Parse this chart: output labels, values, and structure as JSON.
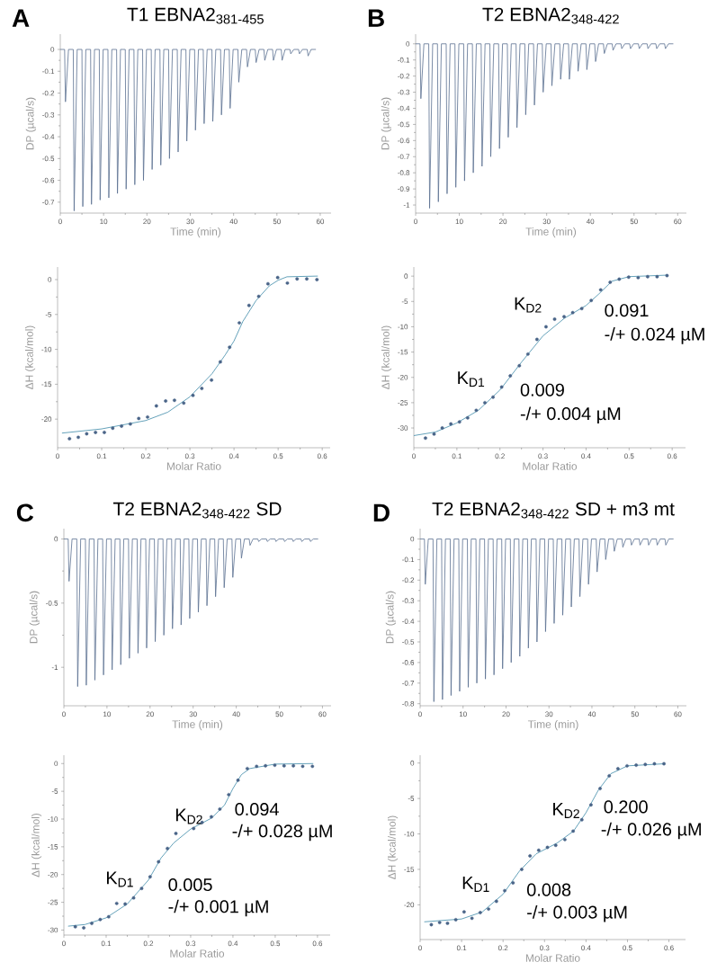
{
  "chart_data": [
    {
      "type": "line",
      "title": "T1 EBNA2$_{381-455}$",
      "xlabel": "Time (min)",
      "ylabel": "DP (µcal/s)",
      "annotations": [
        "A"
      ],
      "x": [
        0,
        1,
        1.2,
        1.9,
        3,
        3.2,
        3.9,
        5,
        5.2,
        5.9,
        7,
        7.2,
        7.9,
        9,
        9.2,
        9.9,
        11,
        11.2,
        11.9,
        13,
        13.2,
        13.9,
        15,
        15.2,
        15.9,
        17,
        17.2,
        17.9,
        19,
        19.2,
        19.9,
        21,
        21.2,
        21.9,
        23,
        23.2,
        23.9,
        25,
        25.2,
        25.9,
        27,
        27.2,
        27.9,
        29,
        29.2,
        29.9,
        31,
        31.2,
        31.9,
        33,
        33.2,
        33.9,
        35,
        35.2,
        35.9,
        37,
        37.2,
        37.9,
        39,
        39.2,
        39.9,
        41,
        41.2,
        41.9,
        43,
        43.2,
        43.9,
        45,
        45.2,
        45.9,
        47,
        47.2,
        47.9,
        49,
        49.2,
        49.9,
        51,
        51.2,
        51.9,
        53,
        53.2,
        53.9,
        55,
        55.2,
        55.9,
        57,
        57.2,
        57.9,
        59
      ],
      "series": [
        {
          "color": "#5b7091",
          "values": [
            0,
            0,
            -0.24,
            0,
            0,
            -0.74,
            0,
            0,
            -0.72,
            0,
            0,
            -0.71,
            0,
            0,
            -0.69,
            0,
            0,
            -0.68,
            0,
            0,
            -0.66,
            0,
            0,
            -0.64,
            0,
            0,
            -0.62,
            0,
            0,
            -0.6,
            0,
            0,
            -0.55,
            0,
            0,
            -0.53,
            0,
            0,
            -0.5,
            0,
            0,
            -0.47,
            0,
            0,
            -0.42,
            0,
            0,
            -0.37,
            0,
            0,
            -0.34,
            0,
            0,
            -0.33,
            0,
            0,
            -0.3,
            0,
            0,
            -0.27,
            0,
            0,
            -0.15,
            0,
            0,
            -0.08,
            0,
            0,
            -0.06,
            0,
            0,
            -0.05,
            0,
            0,
            -0.05,
            0,
            0,
            -0.05,
            0,
            0,
            -0.02,
            0,
            0,
            -0.02,
            0,
            0,
            -0.03,
            0,
            0
          ]
        }
      ],
      "xlim": [
        0,
        62.5
      ],
      "xticks": [
        0,
        10,
        20,
        30,
        40,
        50,
        60
      ],
      "ylim": [
        -0.75,
        0.07
      ],
      "yticks": [
        0,
        -0.1,
        -0.2,
        -0.3,
        -0.4,
        -0.5,
        -0.6,
        -0.7
      ]
    },
    {
      "type": "scatter",
      "xlabel": "Molar Ratio",
      "ylabel": "ΔH (kcal/mol)",
      "series": [
        {
          "type": "scatter",
          "color": "#4a6488",
          "marker": "circle",
          "x": [
            0.027,
            0.047,
            0.066,
            0.086,
            0.106,
            0.125,
            0.145,
            0.165,
            0.184,
            0.204,
            0.224,
            0.245,
            0.265,
            0.286,
            0.307,
            0.327,
            0.349,
            0.369,
            0.39,
            0.412,
            0.434,
            0.456,
            0.477,
            0.499,
            0.521,
            0.543,
            0.565,
            0.588
          ],
          "values": [
            -22.8,
            -22.6,
            -22.1,
            -21.9,
            -21.9,
            -21.3,
            -21,
            -20.7,
            -19.9,
            -19.7,
            -18.1,
            -17.4,
            -17.3,
            -17.7,
            -16.6,
            -15.6,
            -14.4,
            -11.8,
            -9.7,
            -6.2,
            -3.7,
            -2.4,
            -0.6,
            0.3,
            -0.5,
            0.1,
            0.1,
            0
          ]
        },
        {
          "type": "line",
          "color": "#3e8aa8",
          "x": [
            0.01,
            0.1,
            0.2,
            0.25,
            0.3,
            0.35,
            0.38,
            0.4,
            0.42,
            0.45,
            0.48,
            0.5,
            0.52,
            0.59
          ],
          "values": [
            -22,
            -21.4,
            -20.2,
            -19,
            -16.8,
            -13.5,
            -10.8,
            -8.8,
            -6,
            -3,
            -0.9,
            -0.1,
            0.4,
            0.5
          ]
        }
      ],
      "xlim": [
        0,
        0.618
      ],
      "xticks": [
        0,
        0.1,
        0.2,
        0.3,
        0.4,
        0.5,
        0.6
      ],
      "ylim": [
        -24.1,
        1.8
      ],
      "yticks": [
        0,
        -5,
        -10,
        -15,
        -20
      ]
    },
    {
      "type": "line",
      "title": "T2 EBNA2$_{348-422}$",
      "xlabel": "Time (min)",
      "ylabel": "DP (µcal/s)",
      "annotations": [
        "B"
      ],
      "x": [
        0,
        1,
        1.2,
        1.9,
        3,
        3.2,
        3.9,
        5,
        5.2,
        5.9,
        7,
        7.2,
        7.9,
        9,
        9.2,
        9.9,
        11,
        11.2,
        11.9,
        13,
        13.2,
        13.9,
        15,
        15.2,
        15.9,
        17,
        17.2,
        17.9,
        19,
        19.2,
        19.9,
        21,
        21.2,
        21.9,
        23,
        23.2,
        23.9,
        25,
        25.2,
        25.9,
        27,
        27.2,
        27.9,
        29,
        29.2,
        29.9,
        31,
        31.2,
        31.9,
        33,
        33.2,
        33.9,
        35,
        35.2,
        35.9,
        37,
        37.2,
        37.9,
        39,
        39.2,
        39.9,
        41,
        41.2,
        41.9,
        43,
        43.2,
        43.9,
        45,
        45.2,
        45.9,
        47,
        47.2,
        47.9,
        49,
        49.2,
        49.9,
        51,
        51.2,
        51.9,
        53,
        53.2,
        53.9,
        55,
        55.2,
        55.9,
        57,
        57.2,
        57.9,
        59
      ],
      "series": [
        {
          "color": "#5b7091",
          "values": [
            0,
            0,
            -0.34,
            0,
            0,
            -1.02,
            0,
            0,
            -0.98,
            0,
            0,
            -0.93,
            0,
            0,
            -0.89,
            0,
            0,
            -0.85,
            0,
            0,
            -0.8,
            0,
            0,
            -0.76,
            0,
            0,
            -0.7,
            0,
            0,
            -0.65,
            0,
            0,
            -0.58,
            0,
            0,
            -0.52,
            0,
            0,
            -0.44,
            0,
            0,
            -0.38,
            0,
            0,
            -0.3,
            0,
            0,
            -0.26,
            0,
            0,
            -0.22,
            0,
            0,
            -0.22,
            0,
            0,
            -0.17,
            0,
            0,
            -0.16,
            0,
            0,
            -0.11,
            0,
            0,
            -0.06,
            0,
            0,
            -0.04,
            0,
            0,
            -0.03,
            0,
            0,
            -0.03,
            0,
            0,
            -0.03,
            0,
            0,
            -0.03,
            0,
            0,
            -0.03,
            0,
            0,
            -0.03,
            0,
            0
          ]
        }
      ],
      "xlim": [
        0,
        62
      ],
      "xticks": [
        0,
        10,
        20,
        30,
        40,
        50,
        60
      ],
      "ylim": [
        -1.05,
        0.06
      ],
      "yticks": [
        0,
        -0.1,
        -0.2,
        -0.3,
        -0.4,
        -0.5,
        -0.6,
        -0.7,
        -0.8,
        -0.9,
        -1
      ]
    },
    {
      "type": "scatter",
      "xlabel": "Molar Ratio",
      "ylabel": "ΔH (kcal/mol)",
      "annotations": [
        "K$_{D2}$",
        "0.091",
        "-/+ 0.024 µM",
        "K$_{D1}$",
        "0.009",
        "-/+ 0.004 µM"
      ],
      "series": [
        {
          "type": "scatter",
          "color": "#4a6488",
          "marker": "circle",
          "x": [
            0.027,
            0.047,
            0.066,
            0.086,
            0.106,
            0.125,
            0.145,
            0.165,
            0.184,
            0.204,
            0.224,
            0.245,
            0.265,
            0.286,
            0.307,
            0.327,
            0.349,
            0.369,
            0.39,
            0.412,
            0.434,
            0.456,
            0.477,
            0.499,
            0.521,
            0.543,
            0.565,
            0.588
          ],
          "values": [
            -32,
            -31.2,
            -30,
            -29.2,
            -28.8,
            -28,
            -26.5,
            -25,
            -23.9,
            -21.9,
            -19.7,
            -17.7,
            -15.4,
            -12.5,
            -10,
            -8.5,
            -8,
            -7.2,
            -6.4,
            -4.8,
            -2.7,
            -1.2,
            -0.6,
            -0.2,
            -0.3,
            -0.1,
            -0.1,
            0.1
          ]
        },
        {
          "type": "line",
          "color": "#3e8aa8",
          "x": [
            0,
            0.05,
            0.1,
            0.15,
            0.2,
            0.25,
            0.3,
            0.35,
            0.4,
            0.43,
            0.46,
            0.5,
            0.59
          ],
          "values": [
            -31.5,
            -30.8,
            -29,
            -26.5,
            -22.5,
            -17,
            -11.8,
            -8.3,
            -5.8,
            -3.5,
            -1,
            -0.1,
            0.2
          ]
        }
      ],
      "xlim": [
        0,
        0.631
      ],
      "xticks": [
        0,
        0.1,
        0.2,
        0.3,
        0.4,
        0.5,
        0.6
      ],
      "ylim": [
        -33.9,
        1.8
      ],
      "yticks": [
        0,
        -5,
        -10,
        -15,
        -20,
        -25,
        -30
      ]
    },
    {
      "type": "line",
      "title": "T2 EBNA2$_{348-422}$ SD",
      "xlabel": "Time (min)",
      "ylabel": "DP (µcal/s)",
      "annotations": [
        "C"
      ],
      "x": [
        0,
        1,
        1.2,
        1.9,
        3,
        3.2,
        3.9,
        5,
        5.2,
        5.9,
        7,
        7.2,
        7.9,
        9,
        9.2,
        9.9,
        11,
        11.2,
        11.9,
        13,
        13.2,
        13.9,
        15,
        15.2,
        15.9,
        17,
        17.2,
        17.9,
        19,
        19.2,
        19.9,
        21,
        21.2,
        21.9,
        23,
        23.2,
        23.9,
        25,
        25.2,
        25.9,
        27,
        27.2,
        27.9,
        29,
        29.2,
        29.9,
        31,
        31.2,
        31.9,
        33,
        33.2,
        33.9,
        35,
        35.2,
        35.9,
        37,
        37.2,
        37.9,
        39,
        39.2,
        39.9,
        41,
        41.2,
        41.9,
        43,
        43.2,
        43.9,
        45,
        45.2,
        45.9,
        47,
        47.2,
        47.9,
        49,
        49.2,
        49.9,
        51,
        51.2,
        51.9,
        53,
        53.2,
        53.9,
        55,
        55.2,
        55.9,
        57,
        57.2,
        57.9,
        59
      ],
      "series": [
        {
          "color": "#5b7091",
          "values": [
            0,
            0,
            -0.33,
            0,
            0,
            -1.15,
            0,
            0,
            -1.14,
            0,
            0,
            -1.1,
            0,
            0,
            -1.06,
            0,
            0,
            -1.02,
            0,
            0,
            -0.98,
            0,
            0,
            -0.93,
            0,
            0,
            -0.89,
            0,
            0,
            -0.85,
            0,
            0,
            -0.8,
            0,
            0,
            -0.75,
            0,
            0,
            -0.7,
            0,
            0,
            -0.67,
            0,
            0,
            -0.62,
            0,
            0,
            -0.57,
            0,
            0,
            -0.52,
            0,
            0,
            -0.45,
            0,
            0,
            -0.38,
            0,
            0,
            -0.3,
            0,
            0,
            -0.15,
            0,
            0,
            -0.05,
            0,
            0,
            -0.02,
            0,
            0,
            -0.02,
            0,
            0,
            -0.02,
            0,
            0,
            -0.02,
            0,
            0,
            -0.02,
            0,
            0,
            -0.02,
            0,
            0,
            -0.02,
            0,
            0
          ]
        }
      ],
      "xlim": [
        0,
        62
      ],
      "xticks": [
        0,
        10,
        20,
        30,
        40,
        50,
        60
      ],
      "ylim": [
        -1.3,
        0.08
      ],
      "yticks": [
        0,
        -0.5,
        -1
      ]
    },
    {
      "type": "scatter",
      "xlabel": "Molar Ratio",
      "ylabel": "ΔH (kcal/mol)",
      "annotations": [
        "K$_{D2}$",
        "0.094",
        "-/+ 0.028 µM",
        "K$_{D1}$",
        "0.005",
        "-/+ 0.001 µM"
      ],
      "series": [
        {
          "type": "scatter",
          "color": "#4a6488",
          "marker": "circle",
          "x": [
            0.027,
            0.047,
            0.066,
            0.086,
            0.106,
            0.125,
            0.145,
            0.165,
            0.184,
            0.204,
            0.224,
            0.245,
            0.265,
            0.307,
            0.327,
            0.349,
            0.369,
            0.39,
            0.412,
            0.434,
            0.456,
            0.477,
            0.499,
            0.521,
            0.543,
            0.565,
            0.588
          ],
          "values": [
            -29.4,
            -29.6,
            -28.8,
            -28.1,
            -27.6,
            -25.2,
            -25.3,
            -24.2,
            -22.5,
            -20.4,
            -17.7,
            -15.3,
            -12.6,
            -11.7,
            -10.6,
            -9.6,
            -8.2,
            -5.6,
            -3,
            -0.9,
            -0.5,
            -0.4,
            -0.3,
            -0.4,
            -0.4,
            -0.5,
            -0.5
          ]
        },
        {
          "type": "line",
          "color": "#3e8aa8",
          "x": [
            0.01,
            0.05,
            0.1,
            0.15,
            0.2,
            0.23,
            0.26,
            0.3,
            0.35,
            0.38,
            0.4,
            0.42,
            0.44,
            0.5,
            0.59
          ],
          "values": [
            -29.3,
            -29,
            -27.8,
            -25.3,
            -21,
            -17,
            -14.3,
            -11.8,
            -9.8,
            -7.5,
            -4.5,
            -2,
            -0.9,
            -0.1,
            0
          ]
        }
      ],
      "xlim": [
        0,
        0.63
      ],
      "xticks": [
        0,
        0.1,
        0.2,
        0.3,
        0.4,
        0.5,
        0.6
      ],
      "ylim": [
        -30.9,
        1.5
      ],
      "yticks": [
        0,
        -5,
        -10,
        -15,
        -20,
        -25,
        -30
      ]
    },
    {
      "type": "line",
      "title": "T2 EBNA2$_{348-422}$ SD + m3 mt",
      "xlabel": "Time (min)",
      "ylabel": "DP (µcal/s)",
      "annotations": [
        "D"
      ],
      "x": [
        0,
        1,
        1.2,
        1.9,
        3,
        3.2,
        3.9,
        5,
        5.2,
        5.9,
        7,
        7.2,
        7.9,
        9,
        9.2,
        9.9,
        11,
        11.2,
        11.9,
        13,
        13.2,
        13.9,
        15,
        15.2,
        15.9,
        17,
        17.2,
        17.9,
        19,
        19.2,
        19.9,
        21,
        21.2,
        21.9,
        23,
        23.2,
        23.9,
        25,
        25.2,
        25.9,
        27,
        27.2,
        27.9,
        29,
        29.2,
        29.9,
        31,
        31.2,
        31.9,
        33,
        33.2,
        33.9,
        35,
        35.2,
        35.9,
        37,
        37.2,
        37.9,
        39,
        39.2,
        39.9,
        41,
        41.2,
        41.9,
        43,
        43.2,
        43.9,
        45,
        45.2,
        45.9,
        47,
        47.2,
        47.9,
        49,
        49.2,
        49.9,
        51,
        51.2,
        51.9,
        53,
        53.2,
        53.9,
        55,
        55.2,
        55.9,
        57,
        57.2,
        57.9,
        59
      ],
      "series": [
        {
          "color": "#5b7091",
          "values": [
            0,
            0,
            -0.22,
            0,
            0,
            -0.79,
            0,
            0,
            -0.78,
            0,
            0,
            -0.76,
            0,
            0,
            -0.74,
            0,
            0,
            -0.72,
            0,
            0,
            -0.7,
            0,
            0,
            -0.68,
            0,
            0,
            -0.66,
            0,
            0,
            -0.63,
            0,
            0,
            -0.6,
            0,
            0,
            -0.57,
            0,
            0,
            -0.53,
            0,
            0,
            -0.5,
            0,
            0,
            -0.45,
            0,
            0,
            -0.41,
            0,
            0,
            -0.37,
            0,
            0,
            -0.33,
            0,
            0,
            -0.28,
            0,
            0,
            -0.22,
            0,
            0,
            -0.16,
            0,
            0,
            -0.1,
            0,
            0,
            -0.06,
            0,
            0,
            -0.04,
            0,
            0,
            -0.03,
            0,
            0,
            -0.03,
            0,
            0,
            -0.03,
            0,
            0,
            -0.03,
            0,
            0,
            -0.03,
            0,
            0
          ]
        }
      ],
      "xlim": [
        0,
        62
      ],
      "xticks": [
        0,
        10,
        20,
        30,
        40,
        50,
        60
      ],
      "ylim": [
        -0.81,
        0.05
      ],
      "yticks": [
        0,
        -0.1,
        -0.2,
        -0.3,
        -0.4,
        -0.5,
        -0.6,
        -0.7,
        -0.8
      ]
    },
    {
      "type": "scatter",
      "xlabel": "Molar Ratio",
      "ylabel": "ΔH (kcal/mol)",
      "annotations": [
        "K$_{D2}$",
        "0.200",
        "-/+ 0.026 µM",
        "K$_{D1}$",
        "0.008",
        "-/+ 0.003 µM"
      ],
      "series": [
        {
          "type": "scatter",
          "color": "#4a6488",
          "marker": "circle",
          "x": [
            0.027,
            0.047,
            0.066,
            0.086,
            0.106,
            0.125,
            0.145,
            0.165,
            0.184,
            0.204,
            0.224,
            0.245,
            0.265,
            0.286,
            0.307,
            0.327,
            0.349,
            0.369,
            0.39,
            0.412,
            0.434,
            0.456,
            0.477,
            0.499,
            0.521,
            0.543,
            0.565,
            0.588
          ],
          "values": [
            -22.8,
            -22.5,
            -22.6,
            -22.1,
            -21,
            -21.9,
            -21.1,
            -20.6,
            -19.5,
            -18,
            -16.9,
            -15,
            -13.1,
            -12.3,
            -11.9,
            -11.6,
            -10.8,
            -9.6,
            -8,
            -5.9,
            -3.6,
            -1.8,
            -0.8,
            -0.4,
            -0.3,
            -0.2,
            -0.1,
            -0.1
          ]
        },
        {
          "type": "line",
          "color": "#3e8aa8",
          "x": [
            0.01,
            0.1,
            0.15,
            0.2,
            0.24,
            0.28,
            0.33,
            0.37,
            0.4,
            0.43,
            0.46,
            0.5,
            0.59
          ],
          "values": [
            -22.4,
            -22,
            -21,
            -18.5,
            -15.2,
            -12.8,
            -11.3,
            -9.6,
            -7,
            -3.8,
            -1.5,
            -0.4,
            -0.1
          ]
        }
      ],
      "xlim": [
        0,
        0.64
      ],
      "xticks": [
        0,
        0.1,
        0.2,
        0.3,
        0.4,
        0.5,
        0.6
      ],
      "ylim": [
        -24.9,
        1.1
      ],
      "yticks": [
        0,
        -5,
        -10,
        -15,
        -20
      ]
    }
  ]
}
